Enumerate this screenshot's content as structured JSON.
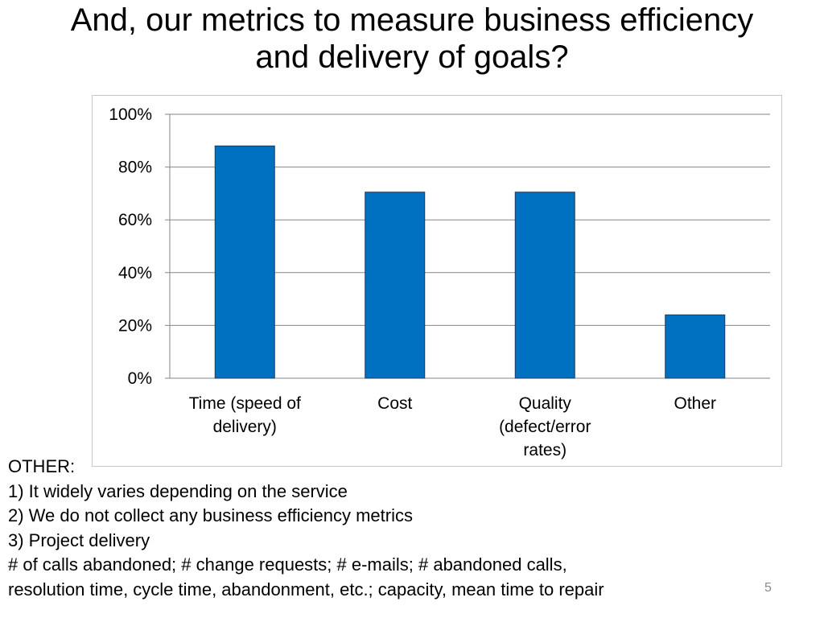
{
  "slide": {
    "title_lines": [
      "And, our metrics to measure business efficiency",
      "and delivery of goals?"
    ],
    "notes": {
      "heading": "OTHER:",
      "lines": [
        "1) It widely varies depending on the service",
        "2) We do not collect any business efficiency metrics",
        "3) Project delivery",
        "# of calls abandoned; # change requests; # e-mails; # abandoned calls,",
        "resolution time, cycle time, abandonment, etc.; capacity, mean time to repair"
      ]
    },
    "page_number": "5"
  },
  "chart_data": {
    "type": "bar",
    "title": "",
    "xlabel": "",
    "ylabel": "",
    "categories": [
      [
        "Time (speed of",
        "delivery)"
      ],
      [
        "Cost"
      ],
      [
        "Quality",
        "(defect/error",
        "rates)"
      ],
      [
        "Other"
      ]
    ],
    "values": [
      88,
      70.5,
      70.5,
      24
    ],
    "ylim": [
      0,
      100
    ],
    "yticks": [
      "0%",
      "20%",
      "40%",
      "60%",
      "80%",
      "100%"
    ],
    "grid": true,
    "legend": "none",
    "colors": {
      "bar": "#0070C0",
      "bar_edge": "#1f3a5c",
      "grid": "#868686",
      "axis": "#868686"
    }
  }
}
